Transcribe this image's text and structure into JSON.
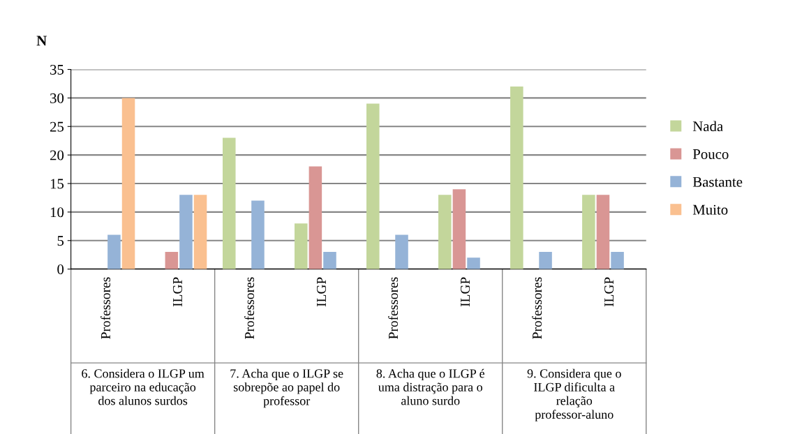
{
  "chart_data": {
    "type": "bar",
    "ylabel": "N",
    "categories": [
      "Professores",
      "ILGP",
      "Professores",
      "ILGP",
      "Professores",
      "ILGP",
      "Professores",
      "ILGP"
    ],
    "annotations": [
      "6. Considera o ILGP um parceiro na educação dos alunos surdos",
      "7. Acha que o ILGP se sobrepõe ao papel do professor",
      "8. Acha que o ILGP é uma distração para o aluno surdo",
      "9. Considera que o ILGP dificulta a relação professor-aluno"
    ],
    "series": [
      {
        "name": "Nada",
        "color": "#c3d69b",
        "values": [
          null,
          null,
          23,
          8,
          29,
          13,
          32,
          13
        ]
      },
      {
        "name": "Pouco",
        "color": "#d99694",
        "values": [
          null,
          3,
          null,
          18,
          null,
          14,
          null,
          13
        ]
      },
      {
        "name": "Bastante",
        "color": "#95b3d7",
        "values": [
          6,
          13,
          12,
          3,
          6,
          2,
          3,
          3
        ]
      },
      {
        "name": "Muito",
        "color": "#fac090",
        "values": [
          30,
          13,
          null,
          null,
          null,
          null,
          null,
          null
        ]
      }
    ],
    "ylim": [
      0,
      35
    ],
    "yticks": [
      0,
      5,
      10,
      15,
      20,
      25,
      30,
      35
    ],
    "grid": "y",
    "legend": "right"
  }
}
